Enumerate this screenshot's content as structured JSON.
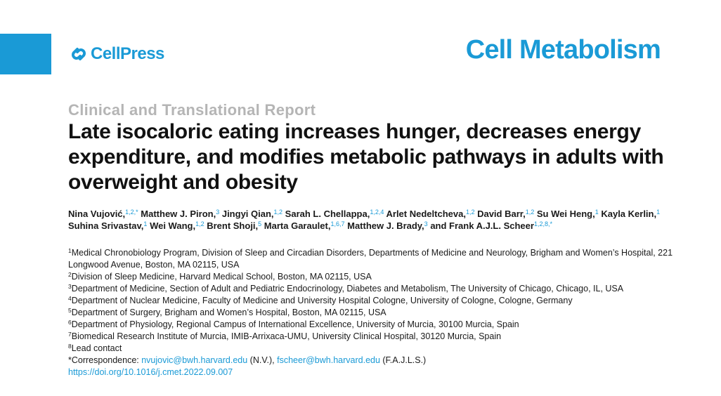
{
  "header": {
    "publisher": "CellPress",
    "journal": "Cell Metabolism",
    "brand_color": "#1a9ad6"
  },
  "article": {
    "section_type": "Clinical and Translational Report",
    "title": "Late isocaloric eating increases hunger, decreases energy expenditure, and modifies metabolic pathways in adults with overweight and obesity"
  },
  "authors": [
    {
      "name": "Nina Vujović,",
      "sup": "1,2,*"
    },
    {
      "name": "Matthew J. Piron,",
      "sup": "3"
    },
    {
      "name": "Jingyi Qian,",
      "sup": "1,2"
    },
    {
      "name": "Sarah L. Chellappa,",
      "sup": "1,2,4"
    },
    {
      "name": "Arlet Nedeltcheva,",
      "sup": "1,2"
    },
    {
      "name": "David Barr,",
      "sup": "1,2"
    },
    {
      "name": "Su Wei Heng,",
      "sup": "1"
    },
    {
      "name": "Kayla Kerlin,",
      "sup": "1"
    },
    {
      "name": "Suhina Srivastav,",
      "sup": "1"
    },
    {
      "name": "Wei Wang,",
      "sup": "1,2"
    },
    {
      "name": "Brent Shoji,",
      "sup": "5"
    },
    {
      "name": "Marta Garaulet,",
      "sup": "1,6,7"
    },
    {
      "name": "Matthew J. Brady,",
      "sup": "3"
    },
    {
      "name": "and Frank A.J.L. Scheer",
      "sup": "1,2,8,*"
    }
  ],
  "affiliations": [
    {
      "num": "1",
      "text": "Medical Chronobiology Program, Division of Sleep and Circadian Disorders, Departments of Medicine and Neurology, Brigham and Women’s Hospital, 221 Longwood Avenue, Boston, MA 02115, USA"
    },
    {
      "num": "2",
      "text": "Division of Sleep Medicine, Harvard Medical School, Boston, MA 02115, USA"
    },
    {
      "num": "3",
      "text": "Department of Medicine, Section of Adult and Pediatric Endocrinology, Diabetes and Metabolism, The University of Chicago, Chicago, IL, USA"
    },
    {
      "num": "4",
      "text": "Department of Nuclear Medicine, Faculty of Medicine and University Hospital Cologne, University of Cologne, Cologne, Germany"
    },
    {
      "num": "5",
      "text": "Department of Surgery, Brigham and Women’s Hospital, Boston, MA 02115, USA"
    },
    {
      "num": "6",
      "text": "Department of Physiology, Regional Campus of International Excellence, University of Murcia, 30100 Murcia, Spain"
    },
    {
      "num": "7",
      "text": "Biomedical Research Institute of Murcia, IMIB-Arrixaca-UMU, University Clinical Hospital, 30120 Murcia, Spain"
    },
    {
      "num": "8",
      "text": "Lead contact"
    }
  ],
  "correspondence": {
    "label": "*Correspondence: ",
    "email1": "nvujovic@bwh.harvard.edu",
    "suffix1": " (N.V.), ",
    "email2": "fscheer@bwh.harvard.edu",
    "suffix2": " (F.A.J.L.S.)"
  },
  "doi": "https://doi.org/10.1016/j.cmet.2022.09.007"
}
